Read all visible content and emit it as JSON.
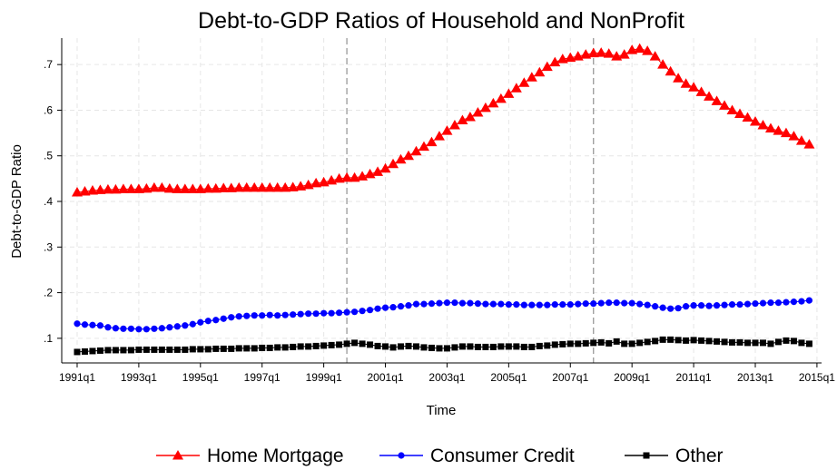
{
  "chart_data": {
    "type": "line",
    "title": "Debt-to-GDP Ratios of Household and NonProfit",
    "xlabel": "Time",
    "ylabel": "Debt-to-GDP Ratio",
    "x": [
      1991,
      1991.25,
      1991.5,
      1991.75,
      1992,
      1992.25,
      1992.5,
      1992.75,
      1993,
      1993.25,
      1993.5,
      1993.75,
      1994,
      1994.25,
      1994.5,
      1994.75,
      1995,
      1995.25,
      1995.5,
      1995.75,
      1996,
      1996.25,
      1996.5,
      1996.75,
      1997,
      1997.25,
      1997.5,
      1997.75,
      1998,
      1998.25,
      1998.5,
      1998.75,
      1999,
      1999.25,
      1999.5,
      1999.75,
      2000,
      2000.25,
      2000.5,
      2000.75,
      2001,
      2001.25,
      2001.5,
      2001.75,
      2002,
      2002.25,
      2002.5,
      2002.75,
      2003,
      2003.25,
      2003.5,
      2003.75,
      2004,
      2004.25,
      2004.5,
      2004.75,
      2005,
      2005.25,
      2005.5,
      2005.75,
      2006,
      2006.25,
      2006.5,
      2006.75,
      2007,
      2007.25,
      2007.5,
      2007.75,
      2008,
      2008.25,
      2008.5,
      2008.75,
      2009,
      2009.25,
      2009.5,
      2009.75,
      2010,
      2010.25,
      2010.5,
      2010.75,
      2011,
      2011.25,
      2011.5,
      2011.75,
      2012,
      2012.25,
      2012.5,
      2012.75,
      2013,
      2013.25,
      2013.5,
      2013.75,
      2014,
      2014.25,
      2014.5,
      2014.75
    ],
    "series": [
      {
        "name": "Home Mortgage",
        "color": "#ff0000",
        "marker": "triangle",
        "values": [
          0.42,
          0.422,
          0.424,
          0.425,
          0.426,
          0.426,
          0.427,
          0.427,
          0.427,
          0.428,
          0.43,
          0.43,
          0.428,
          0.427,
          0.427,
          0.427,
          0.427,
          0.428,
          0.428,
          0.429,
          0.429,
          0.43,
          0.43,
          0.43,
          0.43,
          0.43,
          0.43,
          0.43,
          0.431,
          0.433,
          0.436,
          0.44,
          0.442,
          0.446,
          0.45,
          0.452,
          0.452,
          0.455,
          0.46,
          0.465,
          0.472,
          0.482,
          0.492,
          0.5,
          0.51,
          0.52,
          0.53,
          0.543,
          0.555,
          0.567,
          0.578,
          0.585,
          0.595,
          0.605,
          0.615,
          0.625,
          0.636,
          0.648,
          0.66,
          0.672,
          0.683,
          0.695,
          0.705,
          0.712,
          0.715,
          0.718,
          0.722,
          0.725,
          0.726,
          0.724,
          0.718,
          0.722,
          0.732,
          0.735,
          0.73,
          0.718,
          0.7,
          0.685,
          0.67,
          0.658,
          0.65,
          0.64,
          0.63,
          0.62,
          0.61,
          0.6,
          0.592,
          0.584,
          0.575,
          0.567,
          0.56,
          0.555,
          0.55,
          0.543,
          0.533,
          0.525
        ]
      },
      {
        "name": "Consumer Credit",
        "color": "#0000ff",
        "marker": "circle",
        "values": [
          0.132,
          0.13,
          0.129,
          0.128,
          0.124,
          0.122,
          0.121,
          0.121,
          0.12,
          0.12,
          0.121,
          0.122,
          0.124,
          0.126,
          0.128,
          0.131,
          0.135,
          0.138,
          0.14,
          0.143,
          0.146,
          0.148,
          0.149,
          0.15,
          0.15,
          0.151,
          0.15,
          0.151,
          0.152,
          0.153,
          0.154,
          0.154,
          0.155,
          0.155,
          0.156,
          0.157,
          0.158,
          0.16,
          0.162,
          0.165,
          0.167,
          0.168,
          0.17,
          0.172,
          0.175,
          0.175,
          0.176,
          0.177,
          0.178,
          0.178,
          0.177,
          0.177,
          0.176,
          0.175,
          0.175,
          0.175,
          0.174,
          0.174,
          0.173,
          0.173,
          0.173,
          0.173,
          0.174,
          0.174,
          0.174,
          0.175,
          0.176,
          0.176,
          0.177,
          0.178,
          0.178,
          0.177,
          0.177,
          0.175,
          0.173,
          0.17,
          0.167,
          0.165,
          0.166,
          0.17,
          0.172,
          0.172,
          0.171,
          0.172,
          0.173,
          0.174,
          0.174,
          0.175,
          0.176,
          0.177,
          0.178,
          0.178,
          0.179,
          0.18,
          0.181,
          0.183
        ]
      },
      {
        "name": "Other",
        "color": "#000000",
        "marker": "square",
        "values": [
          0.07,
          0.071,
          0.072,
          0.073,
          0.074,
          0.074,
          0.074,
          0.074,
          0.075,
          0.075,
          0.075,
          0.075,
          0.075,
          0.075,
          0.075,
          0.076,
          0.076,
          0.076,
          0.077,
          0.077,
          0.077,
          0.078,
          0.078,
          0.078,
          0.079,
          0.079,
          0.08,
          0.08,
          0.081,
          0.082,
          0.082,
          0.083,
          0.084,
          0.085,
          0.086,
          0.088,
          0.09,
          0.088,
          0.086,
          0.083,
          0.082,
          0.08,
          0.082,
          0.083,
          0.082,
          0.08,
          0.079,
          0.078,
          0.078,
          0.08,
          0.082,
          0.082,
          0.081,
          0.081,
          0.081,
          0.082,
          0.082,
          0.082,
          0.081,
          0.081,
          0.083,
          0.084,
          0.086,
          0.087,
          0.088,
          0.088,
          0.089,
          0.09,
          0.091,
          0.089,
          0.093,
          0.088,
          0.088,
          0.09,
          0.092,
          0.094,
          0.097,
          0.097,
          0.096,
          0.095,
          0.096,
          0.095,
          0.094,
          0.093,
          0.092,
          0.091,
          0.091,
          0.09,
          0.09,
          0.09,
          0.088,
          0.092,
          0.095,
          0.094,
          0.09,
          0.088
        ]
      }
    ],
    "xlim": [
      1990.5,
      2015.15
    ],
    "xticks": [
      {
        "value": 1991,
        "label": "1991q1"
      },
      {
        "value": 1993,
        "label": "1993q1"
      },
      {
        "value": 1995,
        "label": "1995q1"
      },
      {
        "value": 1997,
        "label": "1997q1"
      },
      {
        "value": 1999,
        "label": "1999q1"
      },
      {
        "value": 2001,
        "label": "2001q1"
      },
      {
        "value": 2003,
        "label": "2003q1"
      },
      {
        "value": 2005,
        "label": "2005q1"
      },
      {
        "value": 2007,
        "label": "2007q1"
      },
      {
        "value": 2009,
        "label": "2009q1"
      },
      {
        "value": 2011,
        "label": "2011q1"
      },
      {
        "value": 2013,
        "label": "2013q1"
      },
      {
        "value": 2015,
        "label": "2015q1"
      }
    ],
    "ylim": [
      0.046,
      0.758
    ],
    "yticks": [
      {
        "value": 0.1,
        "label": ".1"
      },
      {
        "value": 0.2,
        "label": ".2"
      },
      {
        "value": 0.3,
        "label": ".3"
      },
      {
        "value": 0.4,
        "label": ".4"
      },
      {
        "value": 0.5,
        "label": ".5"
      },
      {
        "value": 0.6,
        "label": ".6"
      },
      {
        "value": 0.7,
        "label": ".7"
      }
    ],
    "vlines": [
      1999.75,
      2007.75
    ],
    "grid": true,
    "legend": "bottom"
  }
}
